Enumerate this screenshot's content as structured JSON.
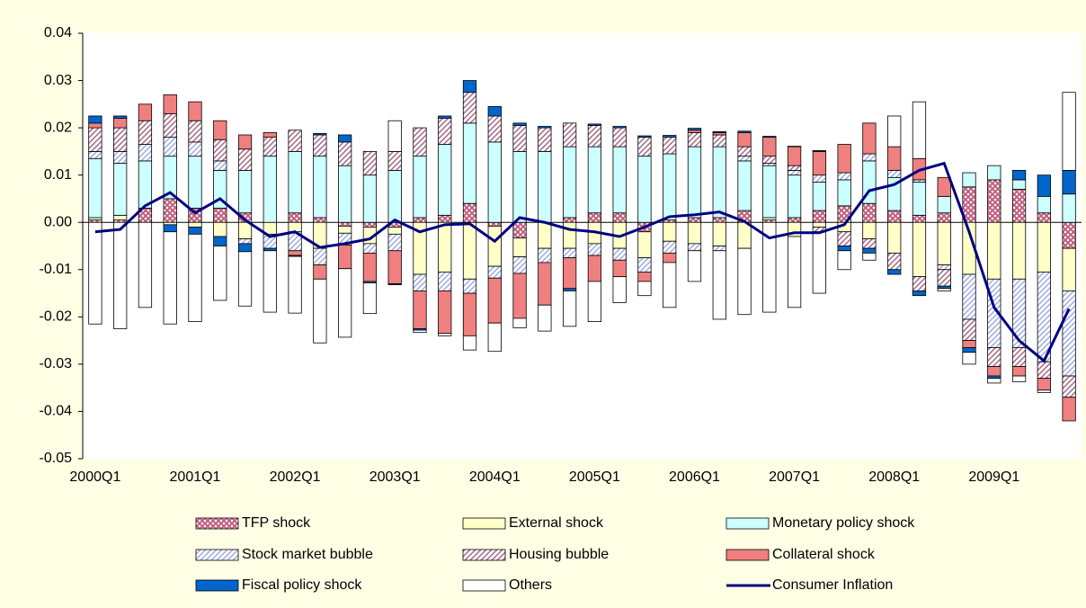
{
  "chart_data": {
    "type": "stacked_bar_line",
    "categories": [
      "2000Q1",
      null,
      null,
      null,
      "2001Q1",
      null,
      null,
      null,
      "2002Q1",
      null,
      null,
      null,
      "2003Q1",
      null,
      null,
      null,
      "2004Q1",
      null,
      null,
      null,
      "2005Q1",
      null,
      null,
      null,
      "2006Q1",
      null,
      null,
      null,
      "2007Q1",
      null,
      null,
      null,
      "2008Q1",
      null,
      null,
      null,
      "2009Q1",
      null,
      null,
      null
    ],
    "ylim": [
      -0.05,
      0.04
    ],
    "yticks": [
      0.04,
      0.03,
      0.02,
      0.01,
      {
        "value": 0,
        "label": "0.00"
      },
      -0.01,
      -0.02,
      -0.03,
      -0.04,
      -0.05
    ],
    "legend": "bottom",
    "series": [
      {
        "name": "TFP shock",
        "color": "#c0607f",
        "pattern": "cross",
        "values": [
          0.0005,
          0.0005,
          0.003,
          0.005,
          0.003,
          0.003,
          0.002,
          0.0,
          0.002,
          0.001,
          -0.0008,
          -0.001,
          -0.001,
          0.001,
          0.0015,
          0.004,
          -0.0008,
          -0.0033,
          0.0,
          0.001,
          0.002,
          0.002,
          -0.002,
          0.0005,
          0.001,
          0.001,
          0.0025,
          0.0005,
          0.001,
          0.0025,
          0.0035,
          0.004,
          0.0025,
          0.0015,
          0.002,
          0.0075,
          0.009,
          0.007,
          0.002,
          -0.0055
        ]
      },
      {
        "name": "External shock",
        "color": "#ffffc8",
        "values": [
          0.0005,
          0.001,
          0.0,
          -0.0005,
          -0.001,
          -0.003,
          -0.0035,
          -0.0025,
          -0.002,
          -0.0055,
          -0.0015,
          -0.0035,
          -0.0015,
          -0.011,
          -0.0105,
          -0.012,
          -0.0085,
          -0.004,
          -0.0055,
          -0.0055,
          -0.0045,
          -0.0055,
          -0.0055,
          -0.004,
          -0.0045,
          -0.005,
          -0.0055,
          0.0005,
          -0.003,
          -0.001,
          -0.002,
          -0.0035,
          -0.0065,
          -0.0115,
          -0.009,
          -0.011,
          -0.012,
          -0.012,
          -0.0105,
          -0.009
        ]
      },
      {
        "name": "Monetary policy shock",
        "color": "#ccffff",
        "values": [
          0.0125,
          0.011,
          0.01,
          0.009,
          0.011,
          0.008,
          0.009,
          0.014,
          0.013,
          0.013,
          0.012,
          0.01,
          0.011,
          0.013,
          0.015,
          0.017,
          0.017,
          0.015,
          0.015,
          0.015,
          0.014,
          0.014,
          0.014,
          0.014,
          0.015,
          0.015,
          0.0105,
          0.011,
          0.009,
          0.006,
          0.0055,
          0.009,
          0.007,
          0.007,
          0.0035,
          0.003,
          0.003,
          0.002,
          0.0035,
          0.006
        ]
      },
      {
        "name": "Stock market bubble",
        "color": "#9aa6e0",
        "pattern": "diagonal",
        "values": [
          0.0015,
          0.0025,
          0.0035,
          0.004,
          0.003,
          0.002,
          -0.001,
          -0.003,
          -0.004,
          -0.0035,
          -0.0025,
          -0.002,
          -0.0035,
          -0.0035,
          -0.004,
          -0.003,
          -0.0025,
          -0.0035,
          -0.003,
          -0.002,
          -0.0025,
          -0.0025,
          -0.003,
          -0.0025,
          -0.0015,
          -0.001,
          0.001,
          0.0005,
          0.001,
          0.0015,
          0.0015,
          0.0015,
          0.0015,
          0.0005,
          -0.001,
          -0.0095,
          -0.0145,
          -0.0145,
          -0.019,
          -0.018
        ]
      },
      {
        "name": "Housing bubble",
        "color": "#a0607f",
        "pattern": "diagonal",
        "values": [
          0.005,
          0.005,
          0.005,
          0.005,
          0.0045,
          0.0045,
          0.0045,
          0.004,
          0.0045,
          0.0045,
          0.005,
          0.005,
          0.004,
          0.006,
          0.0055,
          0.0065,
          0.0055,
          0.0055,
          0.005,
          0.005,
          0.0045,
          0.004,
          0.004,
          0.0035,
          0.003,
          0.0025,
          0.002,
          0.0015,
          0.001,
          -0.001,
          -0.003,
          -0.002,
          -0.0035,
          -0.003,
          -0.0035,
          -0.0045,
          -0.004,
          -0.004,
          -0.0035,
          -0.0045
        ]
      },
      {
        "name": "Collateral shock",
        "color": "#f08080",
        "values": [
          0.001,
          0.002,
          0.0035,
          0.004,
          0.004,
          0.004,
          0.003,
          0.001,
          -0.001,
          -0.003,
          -0.005,
          -0.006,
          -0.007,
          -0.008,
          -0.009,
          -0.009,
          -0.0095,
          -0.0095,
          -0.009,
          -0.0065,
          -0.0055,
          -0.0035,
          -0.002,
          -0.002,
          0.0005,
          0.0005,
          0.003,
          0.004,
          0.004,
          0.005,
          0.006,
          0.0065,
          0.005,
          0.0045,
          0.004,
          -0.0015,
          -0.002,
          -0.002,
          -0.0025,
          -0.005
        ]
      },
      {
        "name": "Fiscal policy shock",
        "color": "#0066cc",
        "values": [
          0.0015,
          0.0005,
          0.0,
          -0.0015,
          -0.0015,
          -0.002,
          -0.0017,
          -0.0005,
          -0.0002,
          0.0003,
          0.0015,
          -0.0003,
          -0.0002,
          -0.0003,
          0.0005,
          0.0025,
          0.002,
          0.0005,
          0.0003,
          -0.0005,
          0.0003,
          0.0003,
          0.0003,
          0.0004,
          0.0004,
          0.0002,
          0.0003,
          0.0002,
          0.0001,
          0.0002,
          -0.001,
          -0.001,
          -0.001,
          -0.001,
          -0.0005,
          -0.001,
          -0.0005,
          0.002,
          0.0045,
          0.005
        ]
      },
      {
        "name": "Others",
        "color": "#ffffff",
        "values": [
          -0.0215,
          -0.0225,
          -0.018,
          -0.0195,
          -0.0185,
          -0.0115,
          -0.0115,
          -0.013,
          -0.012,
          -0.0135,
          -0.0145,
          -0.0065,
          0.0065,
          -0.0005,
          -0.0005,
          -0.003,
          -0.006,
          -0.002,
          -0.0055,
          -0.0075,
          -0.0085,
          -0.0055,
          -0.003,
          -0.0095,
          -0.0065,
          -0.0145,
          -0.014,
          -0.019,
          -0.015,
          -0.013,
          -0.004,
          -0.0015,
          0.0065,
          0.012,
          -0.0005,
          -0.0025,
          -0.001,
          -0.0012,
          -0.0005,
          0.0165
        ]
      },
      {
        "name": "Consumer Inflation",
        "color": "#000080",
        "kind": "line",
        "values": [
          -0.002,
          -0.0015,
          0.0035,
          0.0063,
          0.002,
          0.005,
          0.0005,
          -0.003,
          -0.002,
          -0.0053,
          -0.0045,
          -0.0035,
          0.0005,
          -0.002,
          -0.0005,
          -0.0003,
          -0.004,
          0.001,
          0.0,
          -0.0015,
          -0.002,
          -0.003,
          -0.001,
          0.0012,
          0.0016,
          0.0022,
          0.0002,
          -0.0033,
          -0.0022,
          -0.0022,
          -0.0005,
          0.0067,
          0.008,
          0.011,
          0.0125,
          -0.002,
          -0.018,
          -0.025,
          -0.0293,
          -0.0183
        ]
      }
    ]
  }
}
